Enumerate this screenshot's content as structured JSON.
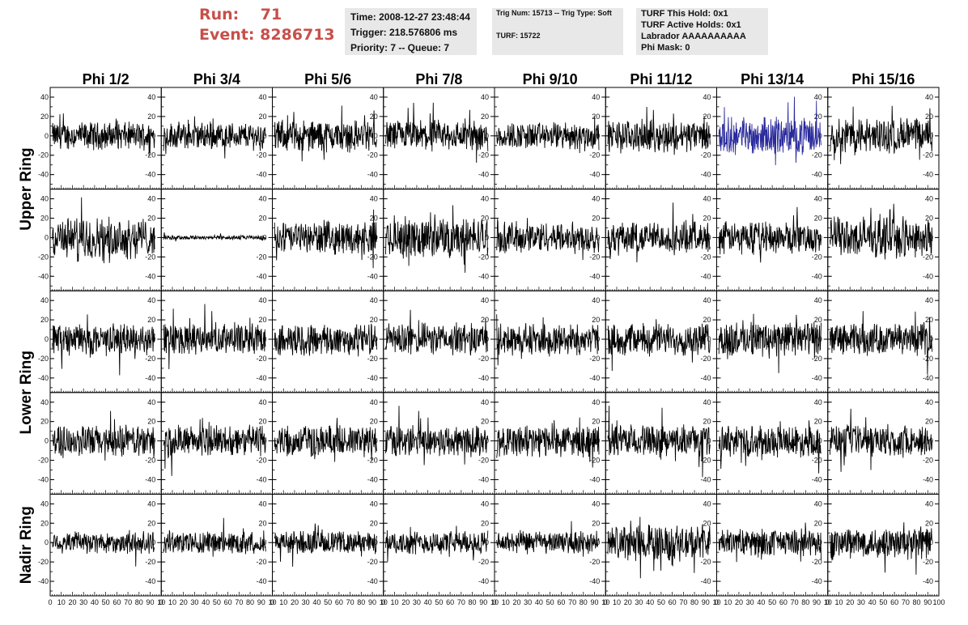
{
  "header": {
    "run_label": "Run:",
    "run_value": "71",
    "event_label": "Event:",
    "event_value": "8286713",
    "time_line": "Time: 2008-12-27 23:48:44",
    "trigger_line": "Trigger: 218.576806 ms",
    "priority_line": "Priority: 7 -- Queue: 7",
    "trig_num_line": "Trig Num: 15713 -- Trig Type: Soft",
    "turf_line": "TURF: 15722",
    "turf_this_hold": "TURF This Hold: 0x1",
    "turf_active_holds": "TURF Active Holds: 0x1",
    "labrador": "Labrador AAAAAAAAAA",
    "phi_mask": "Phi Mask: 0"
  },
  "colors": {
    "header_red": "#c7504a",
    "info_bg": "#e8e8e8",
    "trace_default": "#000000",
    "trace_highlight": "#2a2a9c"
  },
  "chart_data": {
    "type": "line",
    "description_columns": [
      "Phi 1/2",
      "Phi 3/4",
      "Phi 5/6",
      "Phi 7/8",
      "Phi 9/10",
      "Phi 11/12",
      "Phi 13/14",
      "Phi 15/16"
    ],
    "rows": [
      "Upper Ring",
      "Upper Ring",
      "Lower Ring",
      "Lower Ring",
      "Nadir Ring"
    ],
    "row_labels": [
      {
        "label": "Upper Ring"
      },
      {
        "label": "Lower Ring"
      },
      {
        "label": "Nadir Ring"
      }
    ],
    "xlim": [
      0,
      100
    ],
    "ylim": [
      -55,
      50
    ],
    "x_ticks": [
      0,
      10,
      20,
      30,
      40,
      50,
      60,
      70,
      80,
      90,
      100
    ],
    "x_tick_labels": [
      "0",
      "10",
      "20",
      "30",
      "40",
      "50",
      "60",
      "70",
      "80",
      "90",
      "10",
      "0",
      "10",
      "20",
      "30",
      "40",
      "50",
      "60",
      "70",
      "80",
      "90",
      "10",
      "0",
      "10",
      "20",
      "30",
      "40",
      "50",
      "60",
      "70",
      "80",
      "90",
      "10",
      "0",
      "10",
      "20",
      "30",
      "40",
      "50",
      "60",
      "70",
      "80",
      "90",
      "10",
      "0",
      "10",
      "20",
      "30",
      "40",
      "50",
      "60",
      "70",
      "80",
      "90",
      "10",
      "0",
      "10",
      "20",
      "30",
      "40",
      "50",
      "60",
      "70",
      "80",
      "90",
      "10",
      "0",
      "10",
      "20",
      "30",
      "40",
      "50",
      "60",
      "70",
      "80",
      "90",
      "10",
      "0",
      "10",
      "20",
      "30",
      "40",
      "50",
      "60",
      "70",
      "80",
      "90",
      "100"
    ],
    "y_ticks": [
      40,
      20,
      0,
      -20,
      -40
    ],
    "y_tick_labels": [
      "40",
      "20",
      "0",
      "-20",
      "-40"
    ],
    "highlight_panel": {
      "row": 0,
      "col": 6
    },
    "flat_panel": {
      "row": 1,
      "col": 1
    },
    "amplitude_by_panel": [
      [
        12,
        12,
        14,
        14,
        12,
        14,
        16,
        16
      ],
      [
        18,
        2,
        14,
        18,
        14,
        14,
        14,
        18
      ],
      [
        14,
        14,
        14,
        14,
        14,
        14,
        16,
        14
      ],
      [
        14,
        14,
        14,
        14,
        14,
        14,
        14,
        14
      ],
      [
        10,
        10,
        10,
        10,
        10,
        16,
        12,
        14
      ]
    ]
  }
}
